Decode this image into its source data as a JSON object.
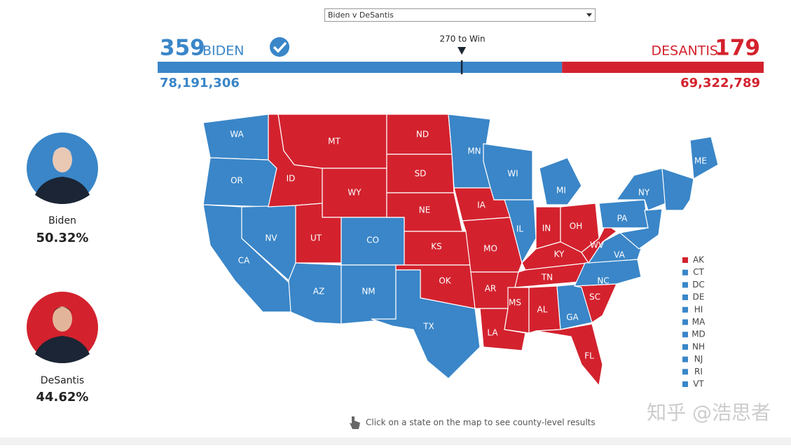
{
  "dropdown": "Biden v DeSantis",
  "header": {
    "dem": {
      "votes": 359,
      "name": "BIDEN",
      "popular": "78,191,306",
      "color": "#3a86c8"
    },
    "rep": {
      "votes": 179,
      "name": "DESANTIS",
      "popular": "69,322,789",
      "color": "#d3222e"
    },
    "threshold": {
      "label": "270 to Win",
      "value": 270
    }
  },
  "candidates": [
    {
      "name": "Biden",
      "share": "50.32%",
      "color": "#3a86c8"
    },
    {
      "name": "DeSantis",
      "share": "44.62%",
      "color": "#d3222e"
    }
  ],
  "map": {
    "states": [
      {
        "label": "WA",
        "color": "#3a86c8"
      },
      {
        "label": "OR",
        "color": "#3a86c8"
      },
      {
        "label": "CA",
        "color": "#3a86c8"
      },
      {
        "label": "NV",
        "color": "#3a86c8"
      },
      {
        "label": "ID",
        "color": "#d3222e"
      },
      {
        "label": "MT",
        "color": "#d3222e"
      },
      {
        "label": "WY",
        "color": "#d3222e"
      },
      {
        "label": "UT",
        "color": "#d3222e"
      },
      {
        "label": "CO",
        "color": "#3a86c8"
      },
      {
        "label": "AZ",
        "color": "#3a86c8"
      },
      {
        "label": "NM",
        "color": "#3a86c8"
      },
      {
        "label": "ND",
        "color": "#d3222e"
      },
      {
        "label": "SD",
        "color": "#d3222e"
      },
      {
        "label": "NE",
        "color": "#d3222e"
      },
      {
        "label": "KS",
        "color": "#d3222e"
      },
      {
        "label": "OK",
        "color": "#d3222e"
      },
      {
        "label": "TX",
        "color": "#3a86c8"
      },
      {
        "label": "MN",
        "color": "#3a86c8"
      },
      {
        "label": "IA",
        "color": "#d3222e"
      },
      {
        "label": "MO",
        "color": "#d3222e"
      },
      {
        "label": "AR",
        "color": "#d3222e"
      },
      {
        "label": "LA",
        "color": "#d3222e"
      },
      {
        "label": "WI",
        "color": "#3a86c8"
      },
      {
        "label": "IL",
        "color": "#3a86c8"
      },
      {
        "label": "MI",
        "color": "#3a86c8"
      },
      {
        "label": "IN",
        "color": "#d3222e"
      },
      {
        "label": "OH",
        "color": "#d3222e"
      },
      {
        "label": "KY",
        "color": "#d3222e"
      },
      {
        "label": "TN",
        "color": "#d3222e"
      },
      {
        "label": "MS",
        "color": "#d3222e"
      },
      {
        "label": "AL",
        "color": "#d3222e"
      },
      {
        "label": "GA",
        "color": "#3a86c8"
      },
      {
        "label": "FL",
        "color": "#d3222e"
      },
      {
        "label": "SC",
        "color": "#d3222e"
      },
      {
        "label": "NC",
        "color": "#3a86c8"
      },
      {
        "label": "VA",
        "color": "#3a86c8"
      },
      {
        "label": "WV",
        "color": "#d3222e"
      },
      {
        "label": "PA",
        "color": "#3a86c8"
      },
      {
        "label": "NY",
        "color": "#3a86c8"
      },
      {
        "label": "ME",
        "color": "#3a86c8"
      }
    ],
    "legend": [
      {
        "label": "AK",
        "color": "#d3222e"
      },
      {
        "label": "CT",
        "color": "#3a86c8"
      },
      {
        "label": "DC",
        "color": "#3a86c8"
      },
      {
        "label": "DE",
        "color": "#3a86c8"
      },
      {
        "label": "HI",
        "color": "#3a86c8"
      },
      {
        "label": "MA",
        "color": "#3a86c8"
      },
      {
        "label": "MD",
        "color": "#3a86c8"
      },
      {
        "label": "NH",
        "color": "#3a86c8"
      },
      {
        "label": "NJ",
        "color": "#3a86c8"
      },
      {
        "label": "RI",
        "color": "#3a86c8"
      },
      {
        "label": "VT",
        "color": "#3a86c8"
      }
    ]
  },
  "footer": {
    "hint": "Click on a state on the map to see county-level results",
    "watermark": "知乎 @浩思者"
  }
}
